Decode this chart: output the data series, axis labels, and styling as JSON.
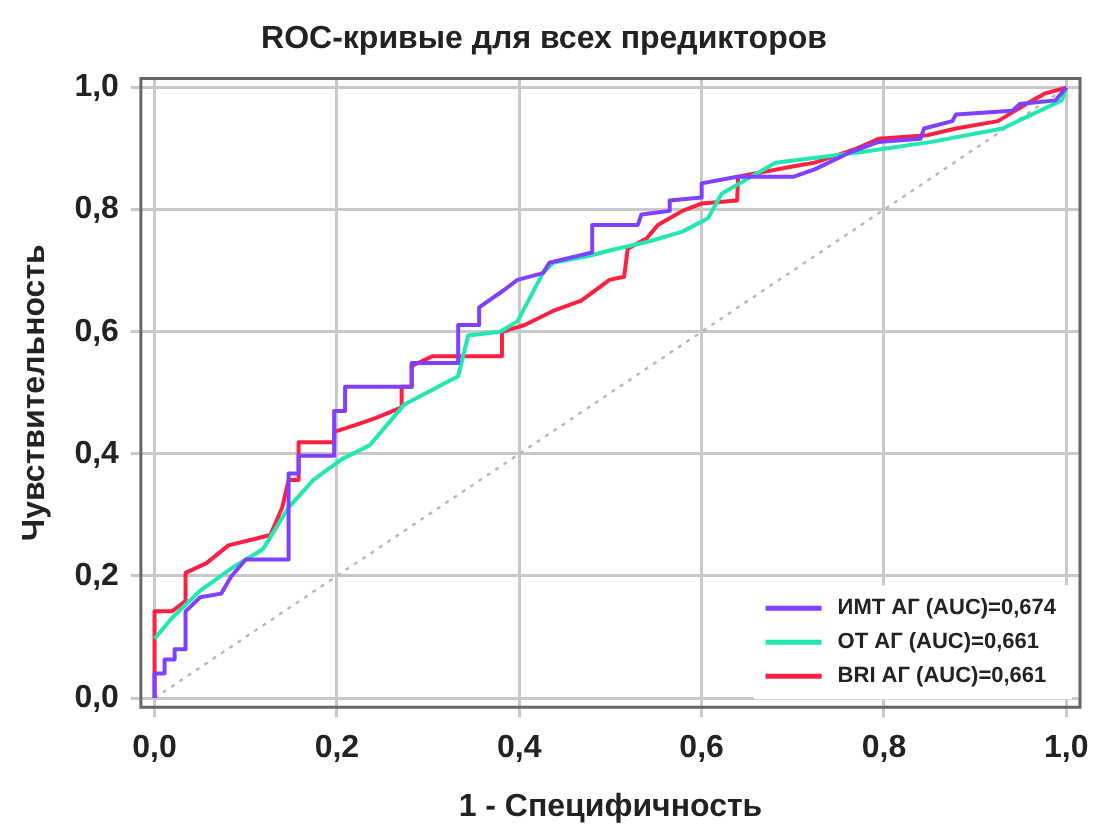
{
  "chart_data": {
    "type": "line",
    "title": "ROC-кривые для всех предикторов",
    "xlabel": "1 - Специфичность",
    "ylabel": "Чувствительность",
    "xlim": [
      -0.015,
      1.015
    ],
    "ylim": [
      -0.015,
      1.015
    ],
    "xticks": [
      {
        "value": 0,
        "label": "0,0"
      },
      {
        "value": 0.2,
        "label": "0,2"
      },
      {
        "value": 0.4,
        "label": "0,4"
      },
      {
        "value": 0.6,
        "label": "0,6"
      },
      {
        "value": 0.8,
        "label": "0,8"
      },
      {
        "value": 1,
        "label": "1,0"
      }
    ],
    "yticks": [
      {
        "value": 0,
        "label": "0,0"
      },
      {
        "value": 0.2,
        "label": "0,2"
      },
      {
        "value": 0.4,
        "label": "0,4"
      },
      {
        "value": 0.6,
        "label": "0,6"
      },
      {
        "value": 0.8,
        "label": "0,8"
      },
      {
        "value": 1,
        "label": "1,0"
      }
    ],
    "grid": true,
    "legend": "bottom right",
    "marker": "none",
    "series": [
      {
        "name": "ИМТ АГ (AUC)=0,674",
        "color": "#8040ff",
        "x": [
          0,
          0,
          0.011,
          0.011,
          0.022,
          0.022,
          0.034,
          0.034,
          0.05,
          0.073,
          0.084,
          0.1,
          0.147,
          0.147,
          0.158,
          0.158,
          0.197,
          0.197,
          0.209,
          0.209,
          0.282,
          0.282,
          0.333,
          0.333,
          0.356,
          0.356,
          0.383,
          0.398,
          0.426,
          0.433,
          0.48,
          0.48,
          0.53,
          0.534,
          0.565,
          0.565,
          0.6,
          0.6,
          0.639,
          0.701,
          0.724,
          0.763,
          0.794,
          0.84,
          0.844,
          0.875,
          0.879,
          0.941,
          0.949,
          0.988,
          1
        ],
        "values": [
          0,
          0.04,
          0.04,
          0.063,
          0.063,
          0.08,
          0.08,
          0.142,
          0.165,
          0.171,
          0.199,
          0.227,
          0.227,
          0.368,
          0.368,
          0.397,
          0.397,
          0.47,
          0.47,
          0.51,
          0.51,
          0.549,
          0.549,
          0.611,
          0.611,
          0.64,
          0.668,
          0.685,
          0.696,
          0.713,
          0.73,
          0.775,
          0.775,
          0.792,
          0.798,
          0.815,
          0.82,
          0.843,
          0.854,
          0.854,
          0.866,
          0.894,
          0.911,
          0.916,
          0.933,
          0.945,
          0.956,
          0.962,
          0.973,
          0.979,
          1
        ]
      },
      {
        "name": "ОТ АГ (AUC)=0,661",
        "color": "#20e8b0",
        "x": [
          0,
          0.019,
          0.05,
          0.088,
          0.119,
          0.147,
          0.174,
          0.205,
          0.236,
          0.274,
          0.333,
          0.344,
          0.379,
          0.398,
          0.426,
          0.437,
          0.476,
          0.507,
          0.54,
          0.579,
          0.607,
          0.622,
          0.681,
          0.774,
          0.852,
          0.93,
          0.995,
          1
        ],
        "values": [
          0.097,
          0.131,
          0.176,
          0.216,
          0.244,
          0.312,
          0.357,
          0.391,
          0.414,
          0.481,
          0.527,
          0.594,
          0.6,
          0.617,
          0.696,
          0.713,
          0.724,
          0.736,
          0.747,
          0.764,
          0.786,
          0.826,
          0.877,
          0.894,
          0.911,
          0.933,
          0.979,
          1
        ]
      },
      {
        "name": "BRI АГ (AUC)=0,661",
        "color": "#ff2040",
        "x": [
          0,
          0,
          0.019,
          0.034,
          0.034,
          0.057,
          0.081,
          0.127,
          0.14,
          0.147,
          0.158,
          0.158,
          0.197,
          0.197,
          0.22,
          0.243,
          0.271,
          0.271,
          0.282,
          0.282,
          0.305,
          0.381,
          0.381,
          0.406,
          0.437,
          0.468,
          0.499,
          0.515,
          0.519,
          0.54,
          0.552,
          0.579,
          0.6,
          0.639,
          0.64,
          0.701,
          0.724,
          0.77,
          0.794,
          0.848,
          0.879,
          0.925,
          0.956,
          0.976,
          1
        ],
        "values": [
          0,
          0.142,
          0.142,
          0.159,
          0.205,
          0.221,
          0.25,
          0.267,
          0.312,
          0.357,
          0.357,
          0.419,
          0.419,
          0.436,
          0.447,
          0.459,
          0.476,
          0.51,
          0.51,
          0.544,
          0.56,
          0.56,
          0.6,
          0.611,
          0.634,
          0.651,
          0.685,
          0.69,
          0.736,
          0.753,
          0.775,
          0.798,
          0.81,
          0.815,
          0.854,
          0.871,
          0.877,
          0.9,
          0.916,
          0.922,
          0.933,
          0.945,
          0.973,
          0.99,
          1
        ]
      },
      {
        "color": "#b8b8b8",
        "line_style": "dotted",
        "x": [
          0,
          1
        ],
        "values": [
          0,
          1
        ]
      }
    ]
  }
}
